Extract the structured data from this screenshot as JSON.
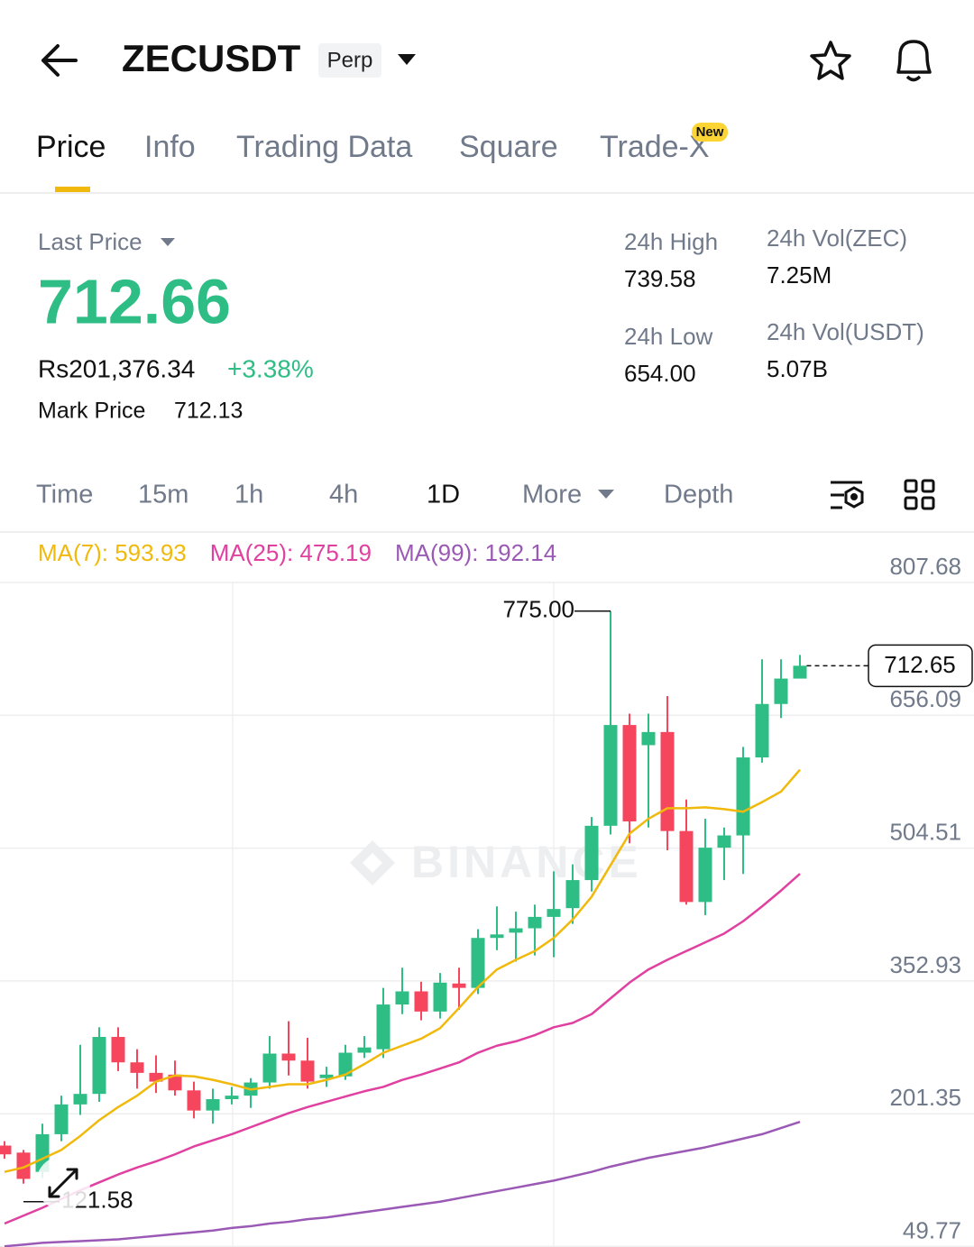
{
  "header": {
    "symbol": "ZECUSDT",
    "contract": "Perp"
  },
  "tabs": [
    "Price",
    "Info",
    "Trading Data",
    "Square",
    "Trade-X"
  ],
  "tab_badge": "New",
  "ticker": {
    "last_price_label": "Last Price",
    "last_price": "712.66",
    "fiat_price": "Rs201,376.34",
    "change": "+3.38%",
    "mark_price_label": "Mark Price",
    "mark_price": "712.13"
  },
  "stats": [
    {
      "label": "24h High",
      "value": "739.58"
    },
    {
      "label": "24h Low",
      "value": "654.00"
    },
    {
      "label": "24h Vol(ZEC)",
      "value": "7.25M"
    },
    {
      "label": "24h Vol(USDT)",
      "value": "5.07B"
    }
  ],
  "intervals": [
    "Time",
    "15m",
    "1h",
    "4h",
    "1D",
    "More",
    "Depth"
  ],
  "chart_data": {
    "type": "candlestick",
    "watermark": "BINANCE",
    "up_color": "#2ebd85",
    "down_color": "#f6465d",
    "open": [
      165,
      157,
      135,
      178,
      212,
      224,
      289,
      260,
      248,
      246,
      228,
      205,
      218,
      222,
      237,
      270,
      262,
      242,
      244,
      271,
      275,
      326,
      341,
      318,
      350,
      345,
      402,
      408,
      413,
      426,
      436,
      468,
      530,
      645,
      622,
      637,
      524,
      443,
      505,
      519,
      608,
      669,
      698
    ],
    "high": [
      170,
      160,
      190,
      222,
      280,
      300,
      300,
      275,
      268,
      262,
      238,
      230,
      232,
      242,
      290,
      307,
      288,
      255,
      280,
      290,
      345,
      368,
      352,
      362,
      368,
      412,
      438,
      432,
      440,
      478,
      486,
      540,
      775,
      658,
      658,
      678,
      560,
      538,
      528,
      620,
      720,
      720,
      725
    ],
    "low": [
      150,
      121.58,
      128,
      170,
      200,
      215,
      250,
      230,
      225,
      222,
      196,
      190,
      212,
      208,
      230,
      245,
      230,
      232,
      240,
      265,
      265,
      315,
      308,
      310,
      320,
      338,
      388,
      375,
      382,
      380,
      418,
      455,
      520,
      510,
      528,
      502,
      440,
      428,
      468,
      475,
      602,
      653,
      700
    ],
    "close": [
      155,
      127,
      178,
      212,
      224,
      289,
      260,
      248,
      238,
      228,
      205,
      218,
      222,
      237,
      270,
      262,
      238,
      246,
      271,
      277,
      326,
      341,
      318,
      351,
      345,
      402,
      406,
      413,
      426,
      435,
      468,
      530,
      645,
      535,
      637,
      524,
      443,
      505,
      519,
      608,
      669,
      698,
      712.65
    ],
    "series": [
      {
        "name": "MA(7): 593.93",
        "color": "#f0b90b",
        "values": [
          135,
          140,
          150,
          160,
          176,
          194,
          209,
          222,
          238,
          245,
          244,
          240,
          235,
          229,
          232,
          235,
          235,
          240,
          246,
          258,
          271,
          279,
          287,
          299,
          322,
          346,
          366,
          377,
          387,
          402,
          423,
          449,
          485,
          521,
          538,
          550,
          550,
          551,
          549,
          546,
          557,
          569,
          593.93
        ]
      },
      {
        "name": "MA(25): 475.19",
        "color": "#e040a0",
        "values": [
          76,
          85,
          94,
          104,
          114,
          123,
          132,
          140,
          147,
          155,
          164,
          171,
          178,
          186,
          194,
          202,
          209,
          215,
          221,
          227,
          232,
          240,
          246,
          253,
          260,
          271,
          279,
          284,
          291,
          300,
          305,
          315,
          333,
          351,
          366,
          377,
          387,
          397,
          407,
          421,
          438,
          456,
          475.19
        ]
      },
      {
        "name": "MA(99): 192.14",
        "color": "#9b59b6",
        "values": [
          50,
          52,
          54,
          55,
          56,
          57,
          58,
          60,
          62,
          64,
          66,
          68,
          71,
          73,
          76,
          78,
          81,
          83,
          86,
          89,
          92,
          95,
          98,
          101,
          105,
          109,
          113,
          117,
          121,
          125,
          130,
          135,
          141,
          146,
          151,
          155,
          159,
          163,
          168,
          173,
          178,
          185,
          192.14
        ]
      }
    ],
    "ylim": [
      49.77,
      807.68
    ],
    "yticks": [
      807.68,
      656.09,
      504.51,
      352.93,
      201.35,
      49.77
    ],
    "grid": true,
    "current_price": 712.65,
    "max_label": {
      "value": 775,
      "label": "775.00"
    },
    "min_label": 121.58
  }
}
